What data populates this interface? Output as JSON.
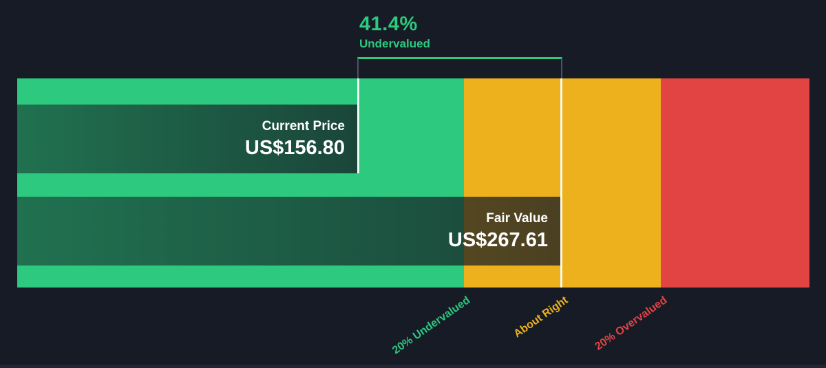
{
  "header": {
    "percent": "41.4%",
    "label": "Undervalued"
  },
  "bars": {
    "current": {
      "label": "Current Price",
      "value": "US$156.80"
    },
    "fair": {
      "label": "Fair Value",
      "value": "US$267.61"
    }
  },
  "zones": [
    {
      "label": "20% Undervalued",
      "color": "#2dc97e"
    },
    {
      "label": "About Right",
      "color": "#ecb11d"
    },
    {
      "label": "20% Overvalued",
      "color": "#e24444"
    }
  ],
  "colors": {
    "background": "#161b25",
    "undervalued_green": "#2dc97e",
    "about_right_amber": "#ecb11d",
    "overvalued_red": "#e24444",
    "bar_overlay_dark": "rgba(20,26,35,0.75)",
    "marker_white": "#ffffff",
    "bracket_gray": "#4d5562"
  },
  "chart_data": {
    "type": "bar",
    "title": "41.4% Undervalued",
    "series": [
      {
        "name": "Current Price",
        "value": 156.8,
        "display": "US$156.80"
      },
      {
        "name": "Fair Value",
        "value": 267.61,
        "display": "US$267.61"
      }
    ],
    "annotations": [
      {
        "text": "41.4%",
        "subtext": "Undervalued",
        "anchor": "current-to-fair-gap"
      }
    ],
    "zone_bands": [
      {
        "label": "20% Undervalued",
        "color": "#2dc97e"
      },
      {
        "label": "About Right",
        "color": "#ecb11d"
      },
      {
        "label": "20% Overvalued",
        "color": "#e24444"
      }
    ],
    "discount_pct": 41.4,
    "orientation": "horizontal",
    "grid": false,
    "legend_position": "none",
    "axis_label_rotation_deg": -35
  }
}
